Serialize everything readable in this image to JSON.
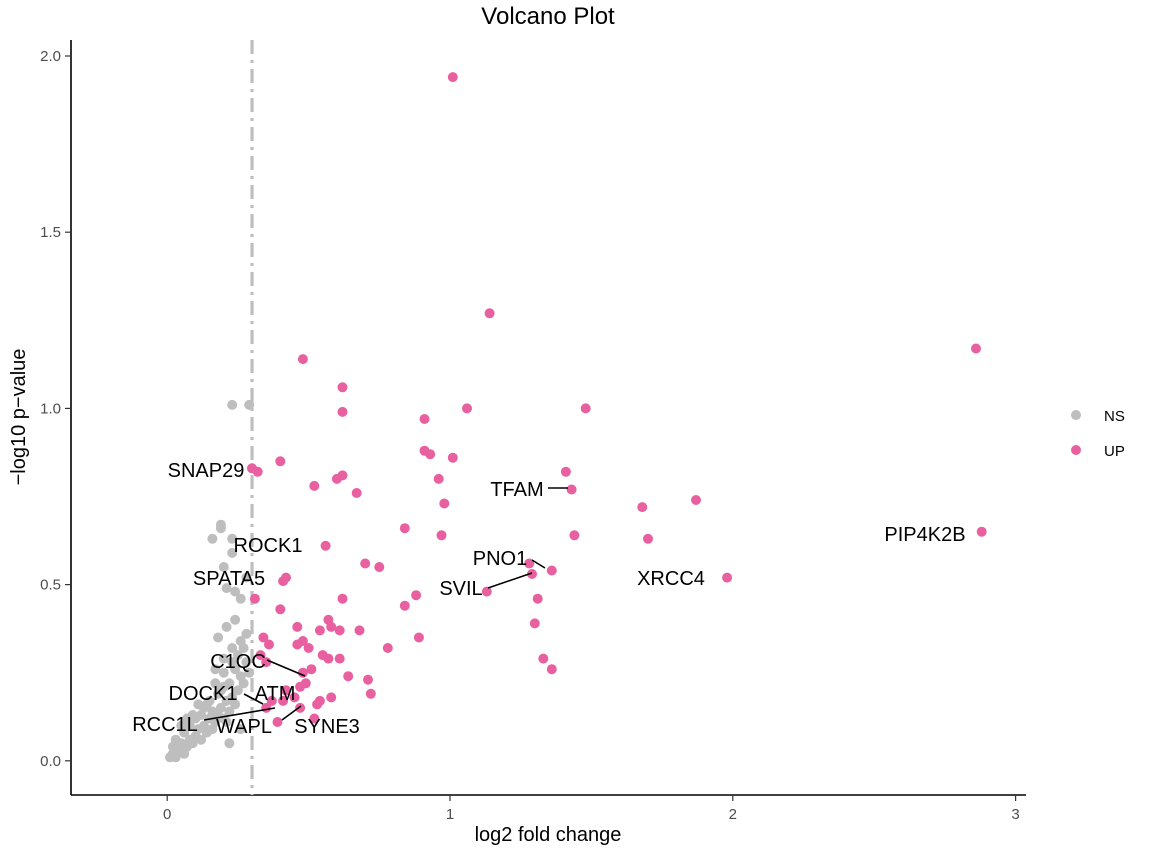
{
  "chart_data": {
    "type": "scatter",
    "title": "Volcano Plot",
    "xlabel": "log2 fold change",
    "ylabel": "−log10 p−value",
    "xlim": [
      -0.35,
      3.05
    ],
    "ylim": [
      -0.09,
      2.04
    ],
    "xticks": [
      0,
      1,
      2,
      3
    ],
    "yticks": [
      0.0,
      0.5,
      1.0,
      1.5,
      2.0
    ],
    "tick_labels_x": [
      "0",
      "1",
      "2",
      "3"
    ],
    "tick_labels_y": [
      "0.0",
      "0.5",
      "1.0",
      "1.5",
      "2.0"
    ],
    "threshold_x": 0.3,
    "colors": {
      "NS": "#bebebe",
      "UP": "#e8609f",
      "threshold": "#bebebe"
    },
    "legend": {
      "position": "right",
      "entries": [
        "NS",
        "UP"
      ]
    },
    "series": [
      {
        "name": "NS",
        "points": [
          [
            0.01,
            0.01
          ],
          [
            0.02,
            0.02
          ],
          [
            0.03,
            0.01
          ],
          [
            0.02,
            0.04
          ],
          [
            0.04,
            0.03
          ],
          [
            0.05,
            0.05
          ],
          [
            0.03,
            0.06
          ],
          [
            0.06,
            0.02
          ],
          [
            0.07,
            0.04
          ],
          [
            0.08,
            0.06
          ],
          [
            0.06,
            0.08
          ],
          [
            0.09,
            0.05
          ],
          [
            0.1,
            0.07
          ],
          [
            0.08,
            0.1
          ],
          [
            0.11,
            0.09
          ],
          [
            0.12,
            0.06
          ],
          [
            0.13,
            0.1
          ],
          [
            0.1,
            0.12
          ],
          [
            0.14,
            0.08
          ],
          [
            0.15,
            0.12
          ],
          [
            0.12,
            0.13
          ],
          [
            0.16,
            0.14
          ],
          [
            0.14,
            0.16
          ],
          [
            0.17,
            0.11
          ],
          [
            0.18,
            0.13
          ],
          [
            0.15,
            0.17
          ],
          [
            0.19,
            0.15
          ],
          [
            0.2,
            0.12
          ],
          [
            0.21,
            0.17
          ],
          [
            0.18,
            0.19
          ],
          [
            0.22,
            0.14
          ],
          [
            0.23,
            0.18
          ],
          [
            0.24,
            0.16
          ],
          [
            0.2,
            0.21
          ],
          [
            0.25,
            0.2
          ],
          [
            0.22,
            0.22
          ],
          [
            0.26,
            0.24
          ],
          [
            0.24,
            0.26
          ],
          [
            0.27,
            0.22
          ],
          [
            0.28,
            0.28
          ],
          [
            0.25,
            0.3
          ],
          [
            0.29,
            0.25
          ],
          [
            0.27,
            0.32
          ],
          [
            0.22,
            0.05
          ],
          [
            0.26,
            0.09
          ],
          [
            0.21,
            0.11
          ],
          [
            0.19,
            0.2
          ],
          [
            0.17,
            0.22
          ],
          [
            0.16,
            0.09
          ],
          [
            0.23,
            0.28
          ],
          [
            0.09,
            0.13
          ],
          [
            0.05,
            0.1
          ],
          [
            0.11,
            0.16
          ],
          [
            0.13,
            0.15
          ],
          [
            0.07,
            0.12
          ],
          [
            0.2,
            0.25
          ],
          [
            0.23,
            0.32
          ],
          [
            0.26,
            0.34
          ],
          [
            0.17,
            0.26
          ],
          [
            0.2,
            0.29
          ],
          [
            0.18,
            0.35
          ],
          [
            0.21,
            0.38
          ],
          [
            0.24,
            0.4
          ],
          [
            0.28,
            0.36
          ],
          [
            0.26,
            0.46
          ],
          [
            0.21,
            0.49
          ],
          [
            0.2,
            0.55
          ],
          [
            0.23,
            0.59
          ],
          [
            0.24,
            0.48
          ],
          [
            0.28,
            0.52
          ],
          [
            0.19,
            0.66
          ],
          [
            0.23,
            0.63
          ],
          [
            0.16,
            0.63
          ],
          [
            0.19,
            0.67
          ],
          [
            0.23,
            1.01
          ],
          [
            0.29,
            1.01
          ]
        ]
      },
      {
        "name": "UP",
        "points": [
          [
            1.01,
            1.94
          ],
          [
            1.14,
            1.27
          ],
          [
            2.86,
            1.17
          ],
          [
            0.48,
            1.14
          ],
          [
            0.62,
            1.06
          ],
          [
            1.06,
            1.0
          ],
          [
            1.48,
            1.0
          ],
          [
            0.62,
            0.99
          ],
          [
            0.91,
            0.97
          ],
          [
            0.91,
            0.88
          ],
          [
            0.93,
            0.87
          ],
          [
            1.01,
            0.86
          ],
          [
            0.4,
            0.85
          ],
          [
            0.3,
            0.83
          ],
          [
            0.32,
            0.82
          ],
          [
            1.41,
            0.82
          ],
          [
            0.62,
            0.81
          ],
          [
            0.6,
            0.8
          ],
          [
            0.96,
            0.8
          ],
          [
            0.52,
            0.78
          ],
          [
            1.43,
            0.77
          ],
          [
            0.67,
            0.76
          ],
          [
            1.87,
            0.74
          ],
          [
            0.98,
            0.73
          ],
          [
            1.68,
            0.72
          ],
          [
            0.84,
            0.66
          ],
          [
            2.88,
            0.65
          ],
          [
            0.97,
            0.64
          ],
          [
            1.44,
            0.64
          ],
          [
            1.7,
            0.63
          ],
          [
            0.56,
            0.61
          ],
          [
            0.7,
            0.56
          ],
          [
            1.28,
            0.56
          ],
          [
            0.75,
            0.55
          ],
          [
            1.36,
            0.54
          ],
          [
            1.29,
            0.53
          ],
          [
            0.42,
            0.52
          ],
          [
            0.41,
            0.51
          ],
          [
            1.98,
            0.52
          ],
          [
            0.88,
            0.47
          ],
          [
            0.31,
            0.46
          ],
          [
            0.62,
            0.46
          ],
          [
            1.13,
            0.48
          ],
          [
            1.31,
            0.46
          ],
          [
            0.84,
            0.44
          ],
          [
            0.4,
            0.43
          ],
          [
            0.46,
            0.38
          ],
          [
            0.57,
            0.4
          ],
          [
            0.58,
            0.38
          ],
          [
            0.54,
            0.37
          ],
          [
            0.61,
            0.37
          ],
          [
            0.68,
            0.37
          ],
          [
            1.3,
            0.39
          ],
          [
            0.34,
            0.35
          ],
          [
            0.36,
            0.33
          ],
          [
            0.48,
            0.34
          ],
          [
            0.5,
            0.32
          ],
          [
            0.46,
            0.33
          ],
          [
            0.89,
            0.35
          ],
          [
            0.78,
            0.32
          ],
          [
            0.33,
            0.3
          ],
          [
            0.35,
            0.28
          ],
          [
            0.55,
            0.3
          ],
          [
            0.57,
            0.29
          ],
          [
            0.61,
            0.29
          ],
          [
            1.33,
            0.29
          ],
          [
            0.51,
            0.26
          ],
          [
            1.36,
            0.26
          ],
          [
            0.49,
            0.22
          ],
          [
            0.64,
            0.24
          ],
          [
            0.71,
            0.23
          ],
          [
            0.47,
            0.21
          ],
          [
            0.42,
            0.2
          ],
          [
            0.45,
            0.18
          ],
          [
            0.58,
            0.18
          ],
          [
            0.72,
            0.19
          ],
          [
            0.37,
            0.17
          ],
          [
            0.41,
            0.17
          ],
          [
            0.53,
            0.16
          ],
          [
            0.54,
            0.17
          ],
          [
            0.47,
            0.15
          ],
          [
            0.35,
            0.15
          ],
          [
            0.52,
            0.12
          ],
          [
            0.39,
            0.11
          ],
          [
            0.48,
            0.25
          ]
        ]
      }
    ],
    "annotations": [
      {
        "text": "SNAP29",
        "x": 0.29,
        "y": 0.82
      },
      {
        "text": "TFAM",
        "x": 1.43,
        "y": 0.77
      },
      {
        "text": "ROCK1",
        "x": 0.31,
        "y": 0.61
      },
      {
        "text": "PIP4K2B",
        "x": 2.88,
        "y": 0.65
      },
      {
        "text": "PNO1",
        "x": 1.36,
        "y": 0.54
      },
      {
        "text": "SPATA5",
        "x": 0.41,
        "y": 0.52
      },
      {
        "text": "SVIL",
        "x": 1.29,
        "y": 0.53
      },
      {
        "text": "XRCC4",
        "x": 1.98,
        "y": 0.52
      },
      {
        "text": "C1QC",
        "x": 0.49,
        "y": 0.24
      },
      {
        "text": "DOCK1",
        "x": 0.35,
        "y": 0.15
      },
      {
        "text": "ATM",
        "x": 0.47,
        "y": 0.15
      },
      {
        "text": "RCC1L",
        "x": 0.39,
        "y": 0.15
      },
      {
        "text": "WAPL",
        "x": 0.43,
        "y": 0.17
      },
      {
        "text": "SYNE3",
        "x": 0.47,
        "y": 0.13
      }
    ]
  }
}
